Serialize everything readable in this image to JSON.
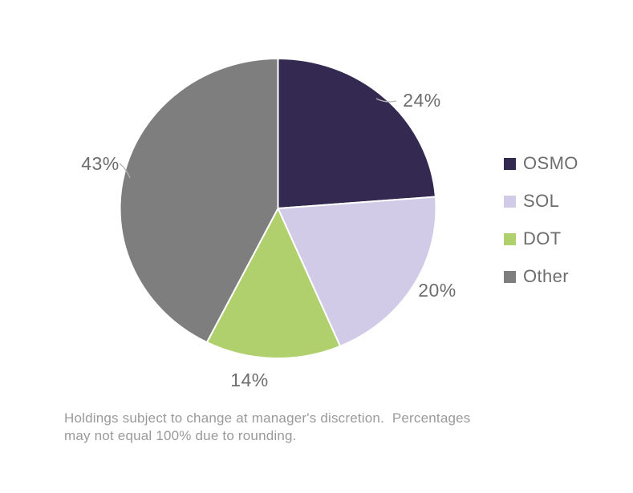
{
  "chart_data": {
    "type": "pie",
    "title": "",
    "slices": [
      {
        "label": "OSMO",
        "value": 24,
        "display": "24%",
        "color": "#332951"
      },
      {
        "label": "SOL",
        "value": 20,
        "display": "20%",
        "color": "#d2cbe8"
      },
      {
        "label": "DOT",
        "value": 14,
        "display": "14%",
        "color": "#afd06d"
      },
      {
        "label": "Other",
        "value": 43,
        "display": "43%",
        "color": "#7e7e7e"
      }
    ],
    "start_angle_deg": 0,
    "direction": "clockwise",
    "legend_position": "right",
    "slice_border_color": "#ffffff",
    "label_color": "#6d6d6d",
    "leader_line_color": "#b3b3b3"
  },
  "footnote": {
    "text": "Holdings subject to change at manager's discretion.  Percentages\nmay not equal 100% due to rounding."
  }
}
